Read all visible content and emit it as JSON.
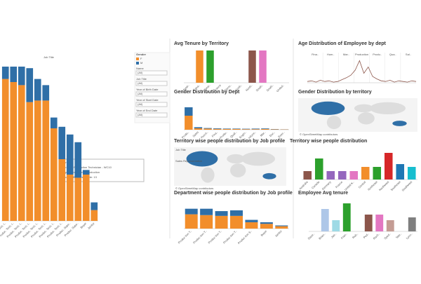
{
  "filters": {
    "legend_title": "Gender",
    "fields": [
      {
        "label": "Name",
        "value": "(All)"
      },
      {
        "label": "Job Title",
        "value": "(All)"
      },
      {
        "label": "Year of Birth Date",
        "value": "(All)"
      },
      {
        "label": "Year of Start Date",
        "value": "(All)"
      },
      {
        "label": "Year of End Date",
        "value": "(All)"
      }
    ]
  },
  "tooltip": [
    "Gender:",
    "Job Title: Production Technician - WC10",
    "Department Name: Production",
    "Count of Business Code: 13"
  ],
  "chart_data": [
    {
      "type": "bar",
      "title": "Job Title",
      "categories": [
        "Produc. Tech. I..",
        "Produc. Tech. I..",
        "Produc. Tech. I..",
        "Produc. Tech. I..",
        "Produc. Tech. I..",
        "Produc. Tech. I..",
        "Produc. Tech. I..",
        "Produc. Tech. I..",
        "Produc. Supe..",
        "Produc. Supe..",
        "Buyer",
        "Janitor"
      ],
      "series": [
        {
          "name": "F",
          "color": "#f28e2b",
          "values": [
            92,
            90,
            88,
            77,
            78,
            78,
            60,
            40,
            30,
            28,
            30,
            7
          ]
        },
        {
          "name": "M",
          "color": "#2f6fa7",
          "values": [
            8,
            10,
            12,
            22,
            14,
            10,
            7,
            21,
            26,
            23,
            3,
            5
          ]
        }
      ],
      "ylim": [
        0,
        100
      ]
    },
    {
      "type": "bar",
      "title": "Avg Tenure by Territory",
      "categories": [
        "Austr..",
        "Cana..",
        "Centr..",
        "France",
        "Germ..",
        "North..",
        "North..",
        "South..",
        "South..",
        "United.."
      ],
      "values": [
        null,
        10,
        10,
        null,
        null,
        null,
        10,
        10,
        null,
        null
      ],
      "colors": [
        "#bbb",
        "#f28e2b",
        "#2ca02c",
        "#bbb",
        "#bbb",
        "#bbb",
        "#8c564b",
        "#e377c2",
        "#bbb",
        "#bbb"
      ],
      "ylim": [
        0,
        10
      ]
    },
    {
      "type": "line",
      "title": "Age Distribution of Employee by dept",
      "panels": [
        "Fina..",
        "Hum..",
        "Mar..",
        "Production",
        "Produ..",
        "Qua..",
        "Sal.."
      ],
      "values": [
        2,
        3,
        1,
        4,
        2,
        3,
        1,
        2,
        5,
        8,
        12,
        20,
        35,
        15,
        25,
        10,
        6,
        3,
        2,
        4,
        1,
        3,
        2,
        1,
        3,
        2
      ],
      "color": "#8c564b",
      "ylim": [
        0,
        40
      ]
    },
    {
      "type": "bar",
      "title": "Gender Distribution by Dept",
      "categories": [
        "Produ..",
        "Sales",
        "Purch..",
        "Fina..",
        "Produ..",
        "Quali..",
        "Engin..",
        "Inform..",
        "Mar..",
        "Doc..",
        "Exec.."
      ],
      "series": [
        {
          "name": "F",
          "color": "#f28e2b",
          "values": [
            100,
            10,
            8,
            6,
            5,
            5,
            4,
            4,
            5,
            3,
            2
          ]
        },
        {
          "name": "M",
          "color": "#2f6fa7",
          "values": [
            60,
            8,
            4,
            4,
            3,
            3,
            3,
            4,
            4,
            2,
            1
          ]
        }
      ],
      "ylim": [
        0,
        200
      ]
    },
    {
      "type": "map",
      "title": "Gender Distribution by territory",
      "caption": "© OpenStreetMap contributors"
    },
    {
      "type": "map",
      "title": "Territory wise people distribution by Job profile",
      "caption": "© OpenStreetMap contributors",
      "legend_title": "Job Title",
      "legend_items": [
        "Sales Representative"
      ]
    },
    {
      "type": "bar",
      "title": "Territory wise people distribution",
      "categories": [
        "Australia",
        "Canada",
        "Germany",
        "France",
        "United K..",
        "Central",
        "Northeast",
        "Northwest",
        "Southeast",
        "Southwest"
      ],
      "values": [
        12,
        30,
        12,
        12,
        12,
        18,
        18,
        38,
        22,
        18
      ],
      "colors": [
        "#8c564b",
        "#2ca02c",
        "#9467bd",
        "#9467bd",
        "#e377c2",
        "#f28e2b",
        "#2ca02c",
        "#d62728",
        "#1f77b4",
        "#17becf"
      ],
      "ylim": [
        0,
        40
      ]
    },
    {
      "type": "bar",
      "title": "Department wise people distribution by Job profile",
      "categories": [
        "Produc tion T..",
        "Produc tion T..",
        "Produc tion T..",
        "Produc tion T..",
        "Produc tion S..",
        "Buyer",
        "Janitor"
      ],
      "series": [
        {
          "name": "F",
          "color": "#f28e2b",
          "values": [
            18,
            17,
            16,
            16,
            8,
            6,
            3
          ]
        },
        {
          "name": "M",
          "color": "#2f6fa7",
          "values": [
            7,
            8,
            6,
            7,
            3,
            2,
            1
          ]
        }
      ],
      "ylim": [
        0,
        30
      ]
    },
    {
      "type": "bar",
      "title": "Employee Avg tenure",
      "categories": [
        "Dave..",
        "Brian..",
        "Jae..",
        "Fran..",
        "Rob..",
        "Ped..",
        "Rach..",
        "Syed..",
        "Tete..",
        "Lynn.."
      ],
      "values": [
        null,
        8,
        4,
        10,
        null,
        6,
        6,
        4,
        null,
        5
      ],
      "colors": [
        "#bbb",
        "#aec7e8",
        "#9edae5",
        "#2ca02c",
        "#bbb",
        "#8c564b",
        "#e377c2",
        "#c49c94",
        "#bbb",
        "#7f7f7f"
      ],
      "ylim": [
        0,
        10
      ]
    }
  ]
}
